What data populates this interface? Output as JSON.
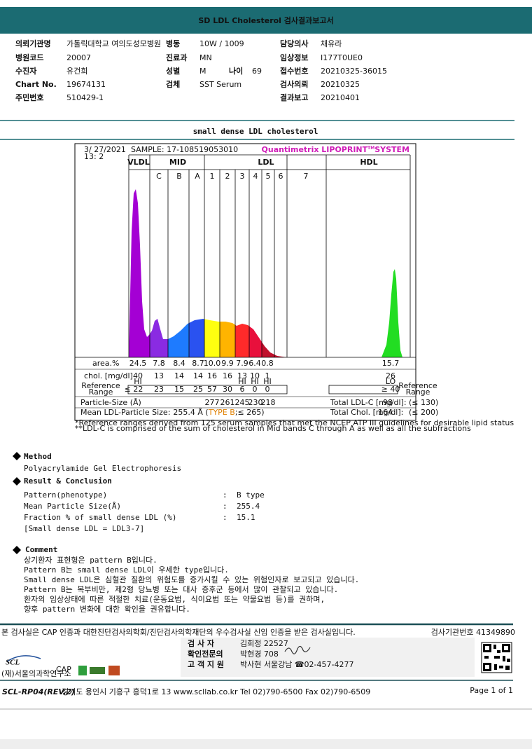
{
  "header": {
    "title": "SD LDL Cholesterol 검사결과보고서"
  },
  "info": [
    {
      "label": "의뢰기관명",
      "value": "가톨릭대학교 여의도성모병원"
    },
    {
      "label": "병동",
      "value": "10W / 1009"
    },
    {
      "label": "담당의사",
      "value": "채유라"
    },
    {
      "label": "병원코드",
      "value": "20007"
    },
    {
      "label": "진료과",
      "value": "MN"
    },
    {
      "label": "임상정보",
      "value": "I177T0UE0"
    },
    {
      "label": "수진자",
      "value": "유건희"
    },
    {
      "label": "성별",
      "value": "M"
    },
    {
      "label": "나이",
      "value": "69"
    },
    {
      "label": "접수번호",
      "value": "20210325-36015"
    },
    {
      "label": "Chart No.",
      "value": "19674131"
    },
    {
      "label": "검체",
      "value": "SST Serum"
    },
    {
      "label": "검사의뢰",
      "value": "20210325"
    },
    {
      "label": "주민번호",
      "value": "510429-1"
    },
    {
      "label": "결과보고",
      "value": "20210401"
    }
  ],
  "report_title": "small dense LDL cholesterol",
  "chart": {
    "date": "3/ 27/2021",
    "time": "13: 2",
    "sample": "SAMPLE: 17-108519053010",
    "brand": "Quantimetrix LIPOPRINT",
    "brand_tm": "TM",
    "brand_suffix": "SYSTEM",
    "bands": [
      "VLDL",
      "MID",
      "LDL",
      "HDL"
    ],
    "subbands": [
      "C",
      "B",
      "A",
      "1",
      "2",
      "3",
      "4",
      "5",
      "6",
      "7"
    ],
    "area_label": "area.%",
    "chol_label": "chol. [mg/dl]",
    "reference_label": [
      "Reference",
      "Range"
    ],
    "particle_label": "Particle-Size (Å)",
    "area": [
      "24.5",
      "7.8",
      "8.4",
      "8.7",
      "10.0",
      "9.9",
      "7.9",
      "6.4",
      "0.8",
      "15.7"
    ],
    "chol": [
      "40",
      "13",
      "14",
      "14",
      "16",
      "16",
      "13",
      "10",
      "1",
      "26"
    ],
    "flags": [
      "HI",
      null,
      null,
      null,
      null,
      null,
      "HI",
      "HI",
      "HI",
      "LO"
    ],
    "reference": [
      "≤ 22",
      "23",
      "15",
      "25",
      "57",
      "30",
      "6",
      "0",
      "0",
      "≥ 40"
    ],
    "particle_sizes": [
      "277",
      "261",
      "245",
      "230",
      "218"
    ],
    "mean_label": "Mean LDL-Particle Size:",
    "mean_value": "255.4 Å (",
    "mean_type": "TYPE B",
    "mean_ref": ";≤ 265)",
    "totals": [
      {
        "label": "Total LDL-C [mg/dl]:",
        "value": "98",
        "ref": "(≤ 130)"
      },
      {
        "label": "Total Chol. [mg/dl]:",
        "value": "164",
        "ref": "(≤ 200)"
      }
    ],
    "footnotes": [
      "*Reference ranges derived from 125 serum samples that met the NCEP ATP III guidelines for desirable lipid status",
      "**LDL-C is comprised of the sum of cholesterol in Mid bands C through A as well as all the subfractions"
    ]
  },
  "method": {
    "heading": "Method",
    "text": "Polyacrylamide Gel Electrophoresis"
  },
  "result": {
    "heading": "Result & Conclusion",
    "separator": ":",
    "rows": [
      {
        "label": "Pattern(phenotype)",
        "value": "B type"
      },
      {
        "label": "Mean Particle Size(Å)",
        "value": "255.4"
      },
      {
        "label": "Fraction % of small dense LDL (%)",
        "value": "15.1"
      }
    ],
    "note": "[Small dense LDL = LDL3-7]"
  },
  "comment": {
    "heading": "Comment",
    "lines": [
      "상기환자 표현형은 pattern B입니다.",
      "Pattern B는 small dense LDL이 우세한 type입니다.",
      "Small dense LDL은 심혈관 질환의 위험도를 증가시킬 수 있는 위험인자로 보고되고 있습니다.",
      "Pattern B는 복부비만, 제2형 당뇨병 또는 대사 증후군 등에서 많이 관찰되고 있습니다.",
      "환자의 임상상태에 따른 적절한 치료(운동요법, 식이요법 또는 약물요법 등)를 권하며,",
      "향후 pattern 변화에 대한 확인을 권유합니다."
    ]
  },
  "footer": {
    "certification": "본 검사실은 CAP 인증과 대한진단검사의학회/진단검사의학재단의 우수검사실 신임 인증을 받은 검사실입니다.",
    "institution_no": "검사기관번호 41349890",
    "signatures": [
      {
        "label": "검 사 자",
        "value": "김희정 22527"
      },
      {
        "label": "확인전문의",
        "value": "박현경 708"
      },
      {
        "label": "고 객 지 원",
        "value": "박사현 서울강남 ☎02-457-4277"
      }
    ],
    "logo": "SCL",
    "logo_sub": "(재)서울의과학연구소",
    "cap": "CAP",
    "form_code": "SCL-RP04(REV.2)",
    "address": "경기도 용인시 기흥구 흥덕1로 13  www.scllab.co.kr  Tel 02)790-6500  Fax 02)790-6509",
    "page": "Page 1 of 1"
  }
}
